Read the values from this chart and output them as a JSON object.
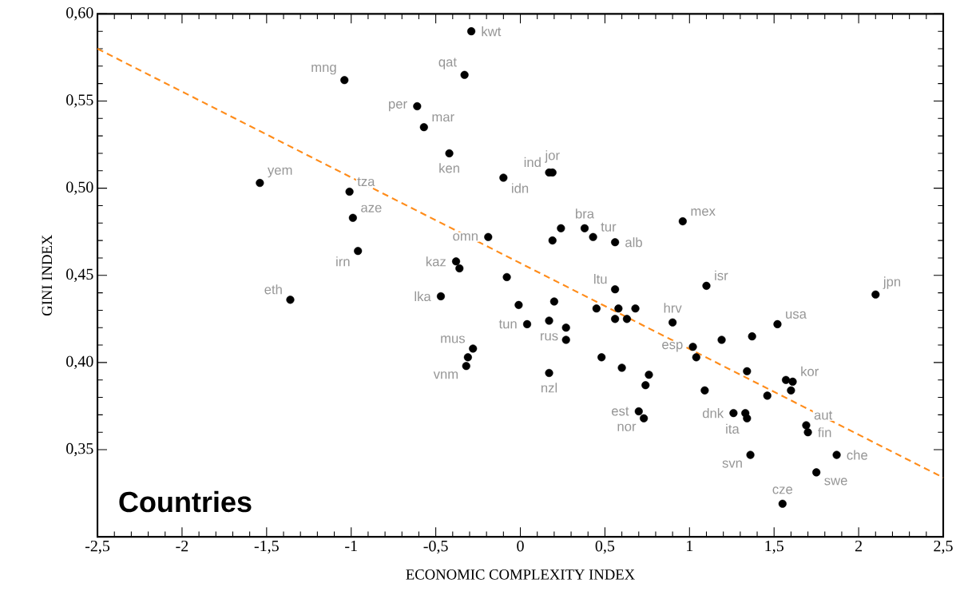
{
  "chart_data": {
    "type": "scatter",
    "xlabel": "ECONOMIC COMPLEXITY INDEX",
    "ylabel": "GINI INDEX",
    "xlim": [
      -2.5,
      2.5
    ],
    "ylim": [
      0.3,
      0.6
    ],
    "xticks": [
      {
        "value": -2.5,
        "label": "-2,5"
      },
      {
        "value": -2,
        "label": "-2"
      },
      {
        "value": -1.5,
        "label": "-1,5"
      },
      {
        "value": -1,
        "label": "-1"
      },
      {
        "value": -0.5,
        "label": "-0,5"
      },
      {
        "value": 0,
        "label": "0"
      },
      {
        "value": 0.5,
        "label": "0,5"
      },
      {
        "value": 1,
        "label": "1"
      },
      {
        "value": 1.5,
        "label": "1,5"
      },
      {
        "value": 2,
        "label": "2"
      },
      {
        "value": 2.5,
        "label": "2,5"
      }
    ],
    "yticks": [
      {
        "value": 0.35,
        "label": "0,35"
      },
      {
        "value": 0.4,
        "label": "0,40"
      },
      {
        "value": 0.45,
        "label": "0,45"
      },
      {
        "value": 0.5,
        "label": "0,50"
      },
      {
        "value": 0.55,
        "label": "0,55"
      },
      {
        "value": 0.6,
        "label": "0,60"
      }
    ],
    "grid": false,
    "series": [
      {
        "color": "#000000",
        "marker": "circle",
        "x": [
          -0.29,
          -0.33,
          -1.04,
          -0.61,
          -0.57,
          -0.42,
          0.19,
          0.17,
          -0.1,
          -1.54,
          -1.01,
          -0.99,
          0.96,
          0.38,
          0.24,
          0.43,
          -0.19,
          0.19,
          0.56,
          -0.96,
          -0.38,
          -0.36,
          -0.08,
          1.1,
          0.56,
          2.1,
          -0.47,
          -1.36,
          -0.01,
          0.2,
          0.45,
          0.58,
          0.68,
          0.9,
          1.52,
          0.04,
          0.17,
          0.56,
          0.63,
          0.27,
          1.37,
          1.19,
          0.27,
          1.02,
          1.04,
          -0.28,
          -0.31,
          -0.32,
          0.48,
          0.6,
          1.34,
          0.17,
          0.76,
          0.74,
          1.61,
          1.57,
          1.6,
          1.09,
          1.46,
          0.7,
          0.73,
          1.26,
          1.33,
          1.34,
          1.69,
          1.7,
          1.36,
          1.87,
          1.75,
          1.55
        ],
        "values": [
          0.59,
          0.565,
          0.562,
          0.547,
          0.535,
          0.52,
          0.509,
          0.509,
          0.506,
          0.503,
          0.498,
          0.483,
          0.481,
          0.477,
          0.477,
          0.472,
          0.472,
          0.47,
          0.469,
          0.464,
          0.458,
          0.454,
          0.449,
          0.444,
          0.442,
          0.439,
          0.438,
          0.436,
          0.433,
          0.435,
          0.431,
          0.431,
          0.431,
          0.423,
          0.422,
          0.422,
          0.424,
          0.425,
          0.425,
          0.42,
          0.415,
          0.413,
          0.413,
          0.409,
          0.403,
          0.408,
          0.403,
          0.398,
          0.403,
          0.397,
          0.395,
          0.394,
          0.393,
          0.387,
          0.389,
          0.39,
          0.384,
          0.384,
          0.381,
          0.372,
          0.368,
          0.371,
          0.371,
          0.368,
          0.364,
          0.36,
          0.347,
          0.347,
          0.337,
          0.319
        ]
      },
      {
        "type": "line",
        "color": "#ff8c1a",
        "line_style": "dashed",
        "marker": "none",
        "x": [
          -2.5,
          2.5
        ],
        "values": [
          0.58,
          0.334
        ]
      }
    ],
    "annotations": [
      "Countries",
      {
        "text": "kwt",
        "x": -0.29,
        "y": 0.59
      },
      {
        "text": "qat",
        "x": -0.33,
        "y": 0.565
      },
      {
        "text": "mng",
        "x": -1.04,
        "y": 0.562
      },
      {
        "text": "per",
        "x": -0.61,
        "y": 0.547
      },
      {
        "text": "mar",
        "x": -0.57,
        "y": 0.535
      },
      {
        "text": "ken",
        "x": -0.42,
        "y": 0.52
      },
      {
        "text": "jor",
        "x": 0.19,
        "y": 0.509
      },
      {
        "text": "ind",
        "x": 0.17,
        "y": 0.509
      },
      {
        "text": "idn",
        "x": -0.1,
        "y": 0.506
      },
      {
        "text": "yem",
        "x": -1.54,
        "y": 0.503
      },
      {
        "text": "tza",
        "x": -1.01,
        "y": 0.498
      },
      {
        "text": "aze",
        "x": -0.99,
        "y": 0.483
      },
      {
        "text": "mex",
        "x": 0.96,
        "y": 0.481
      },
      {
        "text": "bra",
        "x": 0.38,
        "y": 0.477
      },
      {
        "text": "tur",
        "x": 0.43,
        "y": 0.472
      },
      {
        "text": "omn",
        "x": -0.19,
        "y": 0.472
      },
      {
        "text": "alb",
        "x": 0.56,
        "y": 0.469
      },
      {
        "text": "irn",
        "x": -0.96,
        "y": 0.464
      },
      {
        "text": "kaz",
        "x": -0.38,
        "y": 0.458
      },
      {
        "text": "isr",
        "x": 1.1,
        "y": 0.444
      },
      {
        "text": "ltu",
        "x": 0.56,
        "y": 0.442
      },
      {
        "text": "jpn",
        "x": 2.1,
        "y": 0.439
      },
      {
        "text": "lka",
        "x": -0.47,
        "y": 0.438
      },
      {
        "text": "eth",
        "x": -1.36,
        "y": 0.436
      },
      {
        "text": "hrv",
        "x": 0.9,
        "y": 0.423
      },
      {
        "text": "usa",
        "x": 1.52,
        "y": 0.422
      },
      {
        "text": "tun",
        "x": 0.04,
        "y": 0.422
      },
      {
        "text": "rus",
        "x": 0.27,
        "y": 0.42
      },
      {
        "text": "esp",
        "x": 1.02,
        "y": 0.409
      },
      {
        "text": "mus",
        "x": -0.28,
        "y": 0.408
      },
      {
        "text": "vnm",
        "x": -0.32,
        "y": 0.398
      },
      {
        "text": "nzl",
        "x": 0.17,
        "y": 0.394
      },
      {
        "text": "kor",
        "x": 1.61,
        "y": 0.389
      },
      {
        "text": "dnk",
        "x": 1.26,
        "y": 0.371
      },
      {
        "text": "ita",
        "x": 1.34,
        "y": 0.368
      },
      {
        "text": "est",
        "x": 0.7,
        "y": 0.372
      },
      {
        "text": "nor",
        "x": 0.73,
        "y": 0.368
      },
      {
        "text": "aut",
        "x": 1.69,
        "y": 0.364
      },
      {
        "text": "fin",
        "x": 1.7,
        "y": 0.36
      },
      {
        "text": "svn",
        "x": 1.36,
        "y": 0.347
      },
      {
        "text": "che",
        "x": 1.87,
        "y": 0.347
      },
      {
        "text": "swe",
        "x": 1.75,
        "y": 0.337
      },
      {
        "text": "cze",
        "x": 1.55,
        "y": 0.319
      }
    ]
  }
}
